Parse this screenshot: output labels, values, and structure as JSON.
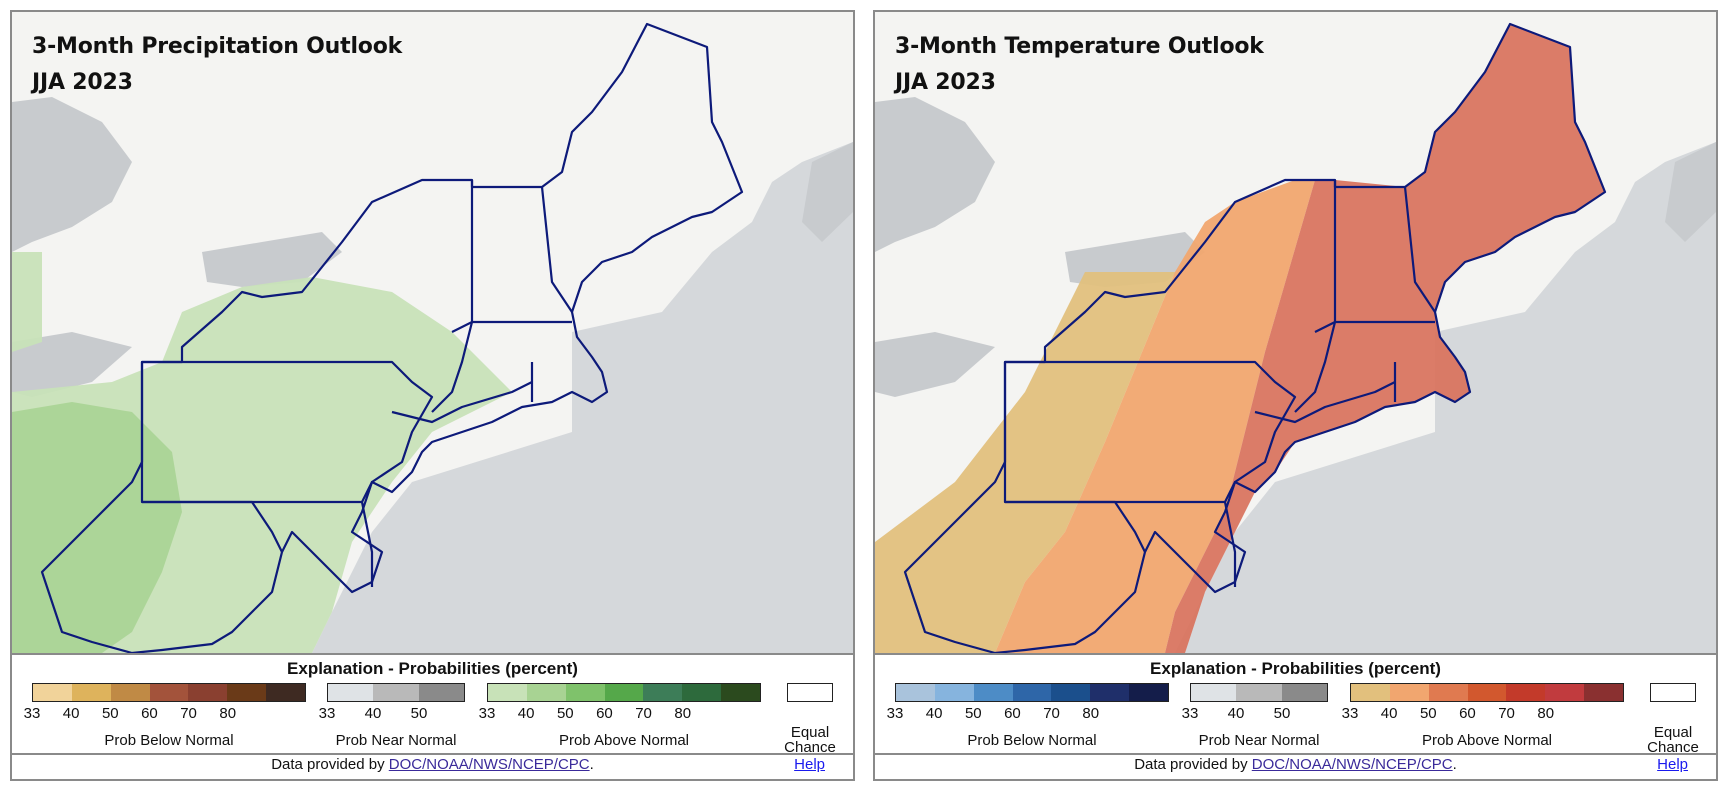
{
  "panels": [
    {
      "title": "3-Month Precipitation Outlook",
      "period": "JJA 2023",
      "legend_title": "Explanation - Probabilities (percent)",
      "scales": [
        {
          "caption": "Prob Below Normal",
          "colors": [
            "#f1d39a",
            "#deb35c",
            "#c08a45",
            "#a3533b",
            "#8a4030",
            "#6a3a18",
            "#3e2a22"
          ],
          "ticks": [
            "33",
            "40",
            "50",
            "60",
            "70",
            "80"
          ]
        },
        {
          "caption": "Prob Near Normal",
          "colors": [
            "#dfe3e6",
            "#b9b9b9",
            "#8a8a8a"
          ],
          "ticks": [
            "33",
            "40",
            "50"
          ]
        },
        {
          "caption": "Prob Above Normal",
          "colors": [
            "#c8e2b8",
            "#a8d393",
            "#7fc26b",
            "#55a84a",
            "#3d7d58",
            "#2d6a3c",
            "#2b4a1e"
          ],
          "ticks": [
            "33",
            "40",
            "50",
            "60",
            "70",
            "80"
          ]
        }
      ],
      "equal_chance": "Equal Chance",
      "credit_prefix": "Data provided by",
      "credit_link": "DOC/NOAA/NWS/NCEP/CPC",
      "credit_suffix": ".",
      "help": "Help"
    },
    {
      "title": "3-Month Temperature Outlook",
      "period": "JJA 2023",
      "legend_title": "Explanation - Probabilities (percent)",
      "scales": [
        {
          "caption": "Prob Below Normal",
          "colors": [
            "#a9c3dc",
            "#86b4de",
            "#4d8cc6",
            "#2e66a8",
            "#1b4f8c",
            "#1f2f6a",
            "#141d4a"
          ],
          "ticks": [
            "33",
            "40",
            "50",
            "60",
            "70",
            "80"
          ]
        },
        {
          "caption": "Prob Near Normal",
          "colors": [
            "#dfe3e6",
            "#b9b9b9",
            "#8a8a8a"
          ],
          "ticks": [
            "33",
            "40",
            "50"
          ]
        },
        {
          "caption": "Prob Above Normal",
          "colors": [
            "#e2c07d",
            "#f1a66f",
            "#e07a50",
            "#d2582e",
            "#c33a2a",
            "#c13b3e",
            "#8a3030"
          ],
          "ticks": [
            "33",
            "40",
            "50",
            "60",
            "70",
            "80"
          ]
        }
      ],
      "equal_chance": "Equal Chance",
      "credit_prefix": "Data provided by",
      "credit_link": "DOC/NOAA/NWS/NCEP/CPC",
      "credit_suffix": ".",
      "help": "Help"
    }
  ],
  "map_colors": {
    "ocean": "#d5d8db",
    "land": "#f4f4f2",
    "lakes": "#c8cbce",
    "border": "#0d1a7a",
    "precip_above_33": "#c8e2b8",
    "precip_above_40": "#a8d393",
    "temp_above_33": "#e2c07d",
    "temp_above_40": "#f1a66f",
    "temp_above_50": "#d97560"
  }
}
